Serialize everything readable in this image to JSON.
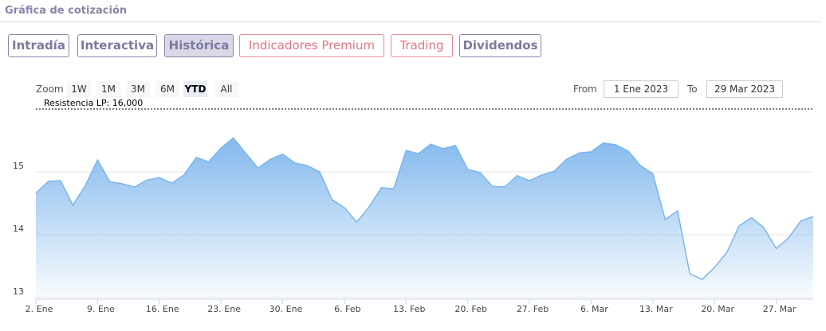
{
  "header": {
    "title": "Gráfica de cotización"
  },
  "tabs": [
    "Intradía",
    "Interactiva",
    "Histórica",
    "Indicadores Premium",
    "Trading",
    "Dividendos"
  ],
  "range_selector": {
    "zoom_label": "Zoom",
    "buttons": [
      "1W",
      "1M",
      "3M",
      "6M",
      "YTD",
      "All"
    ],
    "from_label": "From",
    "from": "1 Ene 2023",
    "to_label": "To",
    "to": "29 Mar 2023"
  },
  "chart_data": {
    "type": "area",
    "color": "#7cb5ec",
    "categories": [
      "2. Ene",
      null,
      null,
      null,
      null,
      "9. Ene",
      null,
      null,
      null,
      null,
      "16. Ene",
      null,
      null,
      null,
      null,
      "23. Ene",
      null,
      null,
      null,
      null,
      "30. Ene",
      null,
      null,
      null,
      null,
      "6. Feb",
      null,
      null,
      null,
      null,
      "13. Feb",
      null,
      null,
      null,
      null,
      "20. Feb",
      null,
      null,
      null,
      null,
      "27. Feb",
      null,
      null,
      null,
      null,
      "6. Mar",
      null,
      null,
      null,
      null,
      "13. Mar",
      null,
      null,
      null,
      null,
      "20. Mar",
      null,
      null,
      null,
      null,
      "27. Mar",
      null,
      null,
      null
    ],
    "values": [
      14.66,
      14.85,
      14.86,
      14.47,
      14.78,
      15.19,
      14.84,
      14.81,
      14.76,
      14.87,
      14.91,
      14.82,
      14.95,
      15.23,
      15.16,
      15.38,
      15.54,
      15.3,
      15.06,
      15.2,
      15.28,
      15.14,
      15.1,
      15.0,
      14.56,
      14.43,
      14.2,
      14.44,
      14.75,
      14.73,
      15.34,
      15.29,
      15.44,
      15.37,
      15.42,
      15.04,
      14.99,
      14.77,
      14.76,
      14.94,
      14.86,
      14.95,
      15.01,
      15.2,
      15.3,
      15.32,
      15.46,
      15.43,
      15.33,
      15.1,
      14.97,
      14.24,
      14.38,
      13.38,
      13.29,
      13.48,
      13.72,
      14.14,
      14.27,
      14.11,
      13.78,
      13.95,
      14.22,
      14.29
    ],
    "ylim": [
      13,
      16
    ],
    "yticks": [
      13,
      14,
      15
    ],
    "grid": true,
    "annotation": {
      "label": "Resistencia LP: 16,000",
      "value": 16
    }
  }
}
